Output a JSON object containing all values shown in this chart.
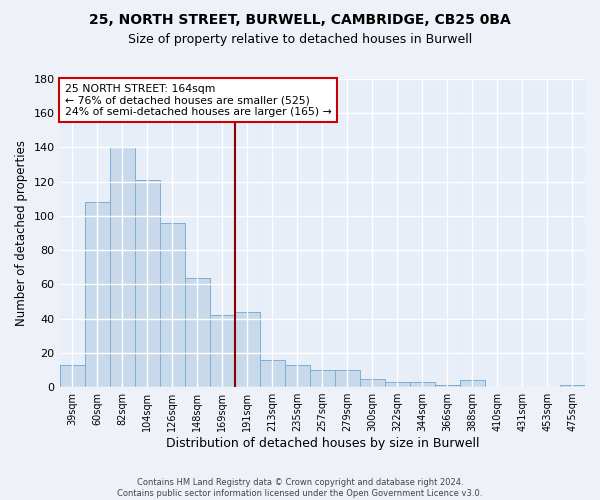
{
  "title": "25, NORTH STREET, BURWELL, CAMBRIDGE, CB25 0BA",
  "subtitle": "Size of property relative to detached houses in Burwell",
  "xlabel": "Distribution of detached houses by size in Burwell",
  "ylabel": "Number of detached properties",
  "bar_labels": [
    "39sqm",
    "60sqm",
    "82sqm",
    "104sqm",
    "126sqm",
    "148sqm",
    "169sqm",
    "191sqm",
    "213sqm",
    "235sqm",
    "257sqm",
    "279sqm",
    "300sqm",
    "322sqm",
    "344sqm",
    "366sqm",
    "388sqm",
    "410sqm",
    "431sqm",
    "453sqm",
    "475sqm"
  ],
  "bar_values": [
    13,
    108,
    140,
    121,
    96,
    64,
    42,
    44,
    16,
    13,
    10,
    10,
    5,
    3,
    3,
    1,
    4,
    0,
    0,
    0,
    1
  ],
  "bar_color": "#c8d9ec",
  "bar_edge_color": "#7aafd4",
  "ylim": [
    0,
    180
  ],
  "yticks": [
    0,
    20,
    40,
    60,
    80,
    100,
    120,
    140,
    160,
    180
  ],
  "vline_x": 6.5,
  "vline_color": "#8b0000",
  "annotation_title": "25 NORTH STREET: 164sqm",
  "annotation_line1": "← 76% of detached houses are smaller (525)",
  "annotation_line2": "24% of semi-detached houses are larger (165) →",
  "annotation_box_color": "#ffffff",
  "annotation_box_edge": "#cc0000",
  "footer_line1": "Contains HM Land Registry data © Crown copyright and database right 2024.",
  "footer_line2": "Contains public sector information licensed under the Open Government Licence v3.0.",
  "bg_color": "#eef2f8",
  "plot_bg_color": "#e8eef8"
}
